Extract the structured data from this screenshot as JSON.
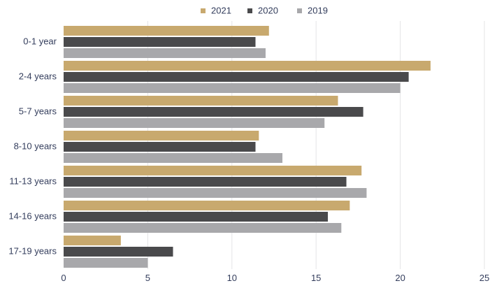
{
  "chart_data": {
    "type": "bar",
    "orientation": "horizontal",
    "categories": [
      "0-1 year",
      "2-4 years",
      "5-7 years",
      "8-10 years",
      "11-13 years",
      "14-16 years",
      "17-19 years"
    ],
    "series": [
      {
        "name": "2021",
        "color": "#c8a96e",
        "values": [
          12.2,
          21.8,
          16.3,
          11.6,
          17.7,
          17.0,
          3.4
        ]
      },
      {
        "name": "2020",
        "color": "#4a4a4c",
        "values": [
          11.4,
          20.5,
          17.8,
          11.4,
          16.8,
          15.7,
          6.5
        ]
      },
      {
        "name": "2019",
        "color": "#a8a8ab",
        "values": [
          12.0,
          20.0,
          15.5,
          13.0,
          18.0,
          16.5,
          5.0
        ]
      }
    ],
    "xlim": [
      0,
      25
    ],
    "xticks": [
      0,
      5,
      10,
      15,
      20,
      25
    ],
    "grid": "vertical",
    "legend_position": "top-center",
    "title": "",
    "xlabel": "",
    "ylabel": ""
  }
}
